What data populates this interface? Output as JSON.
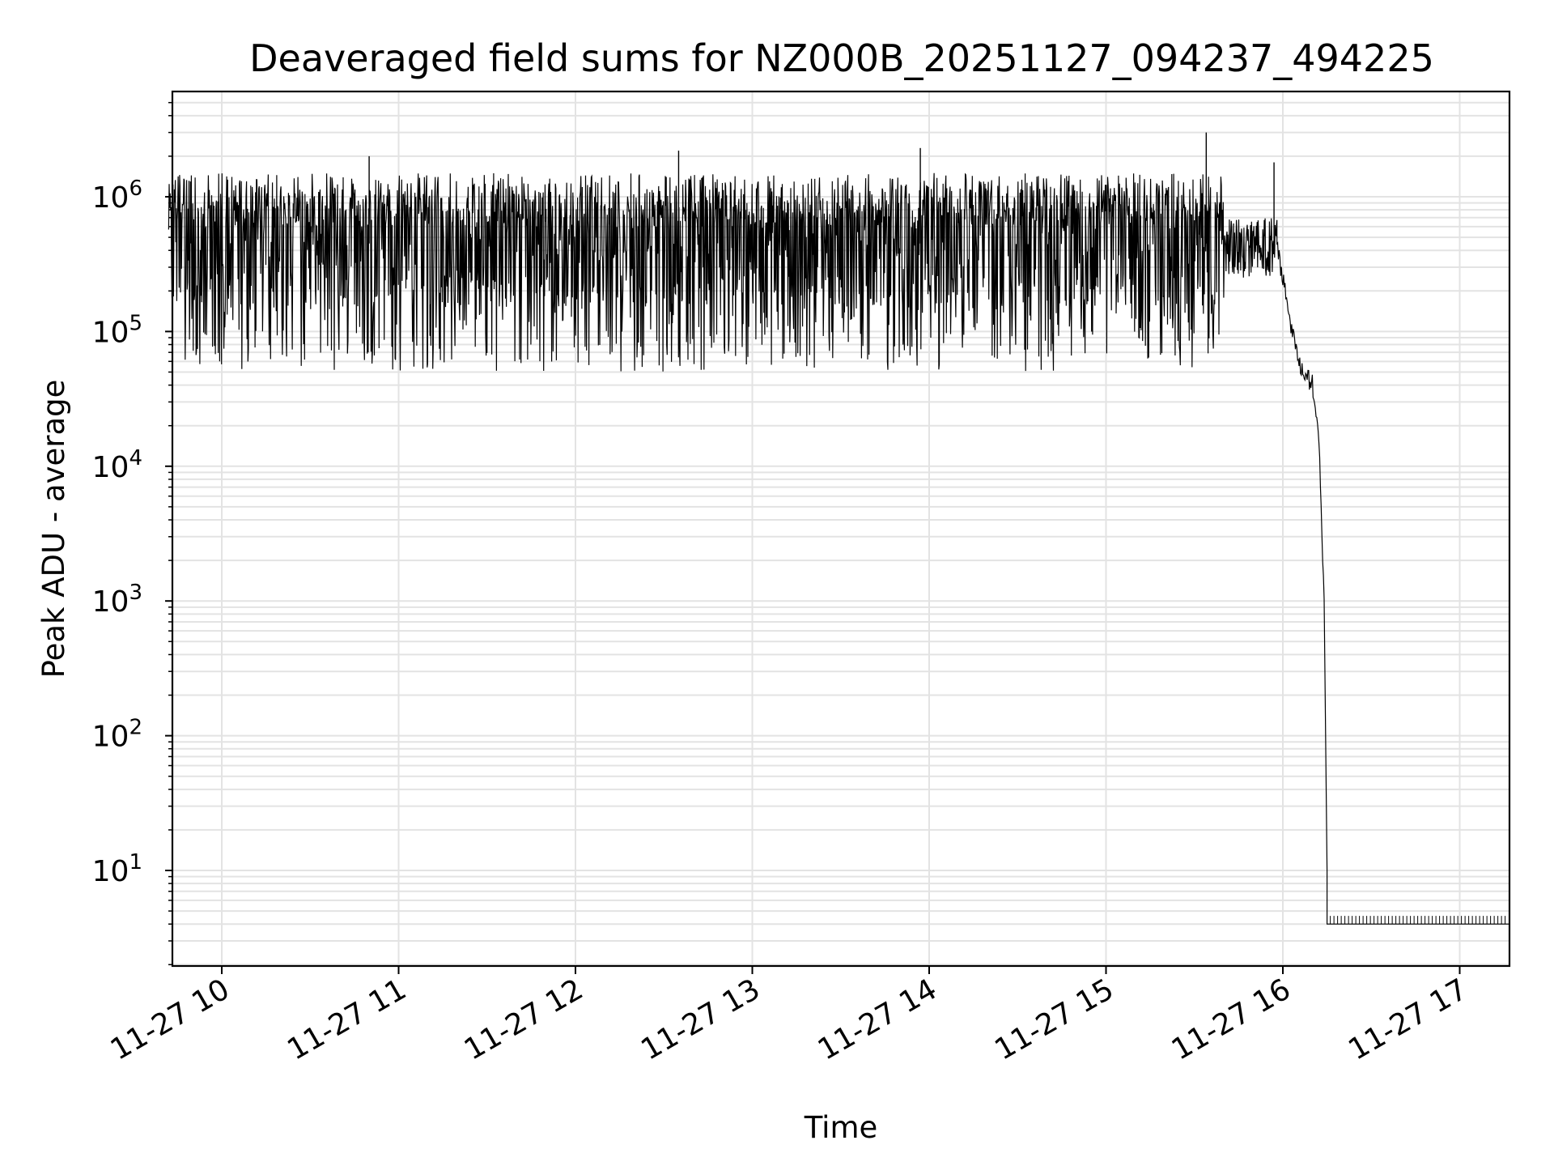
{
  "chart_data": {
    "type": "line",
    "title": "Deaveraged field sums for NZ000B_20251127_094237_494225",
    "xlabel": "Time",
    "ylabel": "Peak ADU - average",
    "yscale": "log",
    "ylim": [
      2,
      5500000
    ],
    "xlim": [
      "2025-11-27 09:42",
      "2025-11-27 17:17"
    ],
    "grid": true,
    "x_ticks": [
      "11-27 10",
      "11-27 11",
      "11-27 12",
      "11-27 13",
      "11-27 14",
      "11-27 15",
      "11-27 16",
      "11-27 17"
    ],
    "y_ticks": [
      {
        "base": "10",
        "exp": "1"
      },
      {
        "base": "10",
        "exp": "2"
      },
      {
        "base": "10",
        "exp": "3"
      },
      {
        "base": "10",
        "exp": "4"
      },
      {
        "base": "10",
        "exp": "5"
      },
      {
        "base": "10",
        "exp": "6"
      }
    ],
    "series": [
      {
        "color": "#000000",
        "x": [
          "09:42",
          "10:00",
          "10:30",
          "11:00",
          "11:30",
          "12:00",
          "12:30",
          "13:00",
          "13:30",
          "14:00",
          "14:30",
          "15:00",
          "15:30",
          "15:58",
          "16:00",
          "16:05",
          "16:10",
          "16:12",
          "16:13",
          "16:14",
          "16:15",
          "16:15",
          "17:17"
        ],
        "y": [
          500000,
          300000,
          500000,
          450000,
          400000,
          500000,
          500000,
          550000,
          450000,
          550000,
          550000,
          700000,
          700000,
          400000,
          250000,
          60000,
          40000,
          20000,
          5000,
          1000,
          10,
          4,
          4
        ],
        "noise_band": [
          {
            "from": "09:42",
            "to": "15:40",
            "low": 50000,
            "high": 1500000
          },
          {
            "from": "15:40",
            "to": "15:58",
            "low": 250000,
            "high": 700000
          }
        ],
        "spikes": [
          {
            "x": "10:50",
            "y": 2000000
          },
          {
            "x": "12:35",
            "y": 2200000
          },
          {
            "x": "13:57",
            "y": 2300000
          },
          {
            "x": "15:34",
            "y": 3000000
          },
          {
            "x": "15:57",
            "y": 1800000
          }
        ]
      }
    ]
  }
}
